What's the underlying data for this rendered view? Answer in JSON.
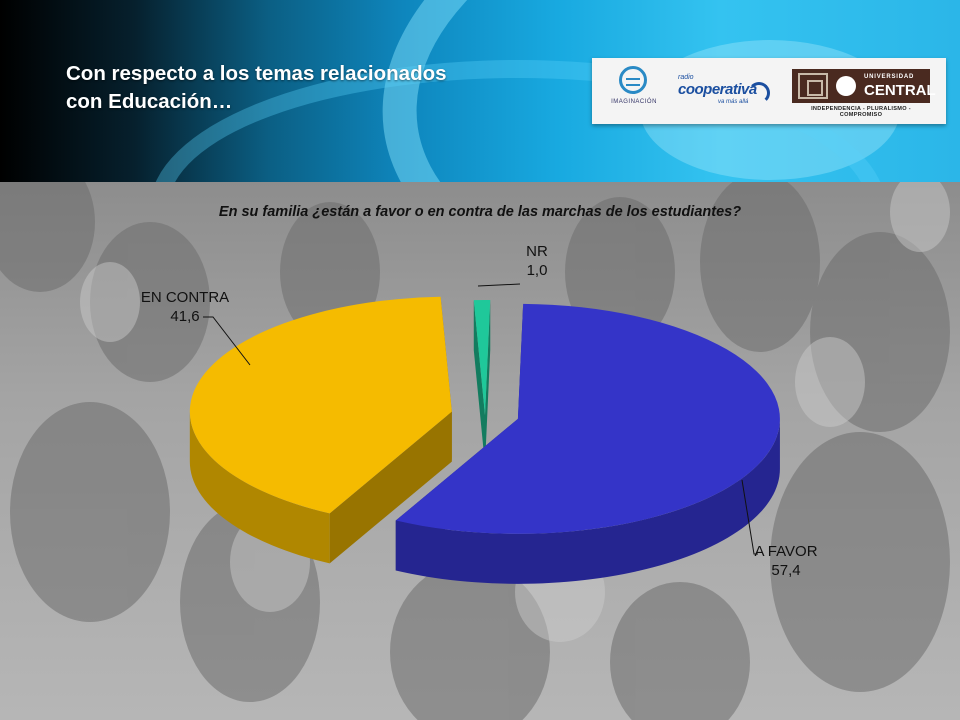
{
  "header": {
    "title_line1": "Con respecto a los temas relacionados",
    "title_line2": "con Educación…"
  },
  "logos": {
    "imaginacion": "IMAGINACIÓN",
    "cooperativa_small": "radio",
    "cooperativa": "cooperativa",
    "cooperativa_tag": "va más allá",
    "central_top": "UNIVERSIDAD",
    "central_name": "CENTRAL",
    "central_motto": "INDEPENDENCIA - PLURALISMO - COMPROMISO"
  },
  "colors": {
    "a_favor": "#3434c8",
    "en_contra": "#f5bb00",
    "nr": "#1fc89a"
  },
  "chart_data": {
    "type": "pie",
    "title": "En su familia ¿están a favor o en contra de las marchas de los estudiantes?",
    "categories": [
      "A FAVOR",
      "EN CONTRA",
      "NR"
    ],
    "values": [
      57.4,
      41.6,
      1.0
    ],
    "value_labels": [
      "57,4",
      "41,6",
      "1,0"
    ],
    "style": "3d exploded"
  }
}
